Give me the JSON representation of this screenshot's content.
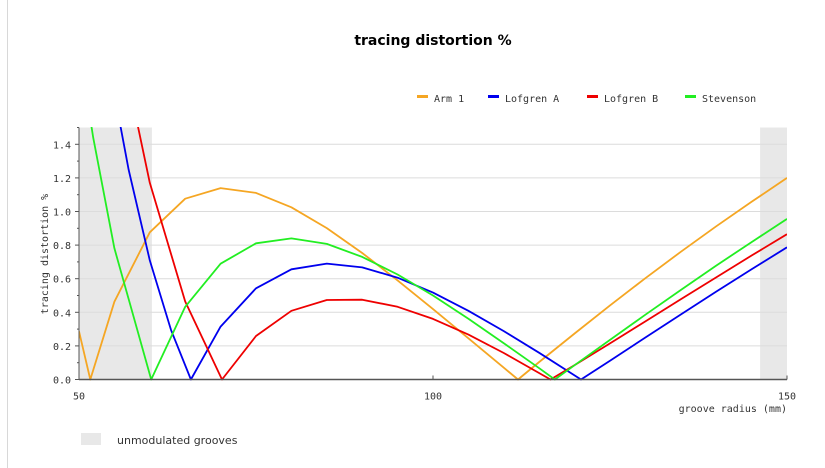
{
  "chart_data": {
    "type": "line",
    "title": "tracing distortion %",
    "xlabel": "groove radius (mm)",
    "ylabel": "tracing distortion %",
    "xlim": [
      50,
      150
    ],
    "ylim": [
      0,
      1.5
    ],
    "x_ticks": [
      50,
      100,
      150
    ],
    "y_ticks": [
      "0.0",
      "0.2",
      "0.4",
      "0.6",
      "0.8",
      "1.0",
      "1.2",
      "1.4"
    ],
    "grid": "horizontal",
    "legend_placement": "top-right",
    "shaded_regions": {
      "label": "unmodulated grooves",
      "color": "#e8e8e8",
      "ranges": [
        [
          50,
          60.3
        ],
        [
          146.2,
          150
        ]
      ]
    },
    "series": [
      {
        "name": "Arm 1",
        "color": "#f5a623",
        "points": [
          [
            50,
            0.287
          ],
          [
            51.6,
            0
          ],
          [
            55,
            0.463
          ],
          [
            60,
            0.876
          ],
          [
            65,
            1.076
          ],
          [
            70,
            1.139
          ],
          [
            75,
            1.111
          ],
          [
            80,
            1.025
          ],
          [
            85,
            0.901
          ],
          [
            90,
            0.753
          ],
          [
            95,
            0.59
          ],
          [
            100,
            0.419
          ],
          [
            105,
            0.245
          ],
          [
            110,
            0.07
          ],
          [
            112,
            0
          ],
          [
            115,
            0.104
          ],
          [
            120,
            0.274
          ],
          [
            125,
            0.441
          ],
          [
            130,
            0.603
          ],
          [
            135,
            0.76
          ],
          [
            140,
            0.912
          ],
          [
            145,
            1.058
          ],
          [
            150,
            1.2
          ]
        ]
      },
      {
        "name": "Lofgren A",
        "color": "#0000ee",
        "points": [
          [
            55,
            1.7
          ],
          [
            57,
            1.25
          ],
          [
            60,
            0.709
          ],
          [
            63,
            0.295
          ],
          [
            65.8,
            0
          ],
          [
            70,
            0.315
          ],
          [
            75,
            0.543
          ],
          [
            80,
            0.656
          ],
          [
            85,
            0.69
          ],
          [
            90,
            0.667
          ],
          [
            95,
            0.606
          ],
          [
            100,
            0.517
          ],
          [
            105,
            0.409
          ],
          [
            110,
            0.288
          ],
          [
            115,
            0.159
          ],
          [
            120.9,
            0
          ],
          [
            125,
            0.112
          ],
          [
            130,
            0.25
          ],
          [
            135,
            0.387
          ],
          [
            140,
            0.523
          ],
          [
            145,
            0.656
          ],
          [
            150,
            0.787
          ]
        ]
      },
      {
        "name": "Lofgren B",
        "color": "#ee0000",
        "points": [
          [
            57,
            1.77
          ],
          [
            60,
            1.171
          ],
          [
            65,
            0.464
          ],
          [
            70.2,
            0
          ],
          [
            75,
            0.259
          ],
          [
            80,
            0.409
          ],
          [
            85,
            0.473
          ],
          [
            90,
            0.475
          ],
          [
            95,
            0.433
          ],
          [
            100,
            0.361
          ],
          [
            105,
            0.267
          ],
          [
            110,
            0.158
          ],
          [
            116.6,
            0
          ],
          [
            120,
            0.086
          ],
          [
            125,
            0.215
          ],
          [
            130,
            0.346
          ],
          [
            135,
            0.478
          ],
          [
            140,
            0.608
          ],
          [
            145,
            0.738
          ],
          [
            150,
            0.865
          ]
        ]
      },
      {
        "name": "Stevenson",
        "color": "#22ee22",
        "points": [
          [
            51,
            1.71
          ],
          [
            52,
            1.44
          ],
          [
            55,
            0.781
          ],
          [
            60.2,
            0
          ],
          [
            65,
            0.433
          ],
          [
            70,
            0.689
          ],
          [
            75,
            0.811
          ],
          [
            80,
            0.84
          ],
          [
            85,
            0.807
          ],
          [
            90,
            0.73
          ],
          [
            95,
            0.625
          ],
          [
            100,
            0.5
          ],
          [
            105,
            0.362
          ],
          [
            110,
            0.216
          ],
          [
            115,
            0.067
          ],
          [
            117.2,
            0
          ],
          [
            120,
            0.085
          ],
          [
            125,
            0.236
          ],
          [
            130,
            0.386
          ],
          [
            135,
            0.533
          ],
          [
            140,
            0.678
          ],
          [
            145,
            0.818
          ],
          [
            150,
            0.956
          ]
        ]
      }
    ]
  }
}
